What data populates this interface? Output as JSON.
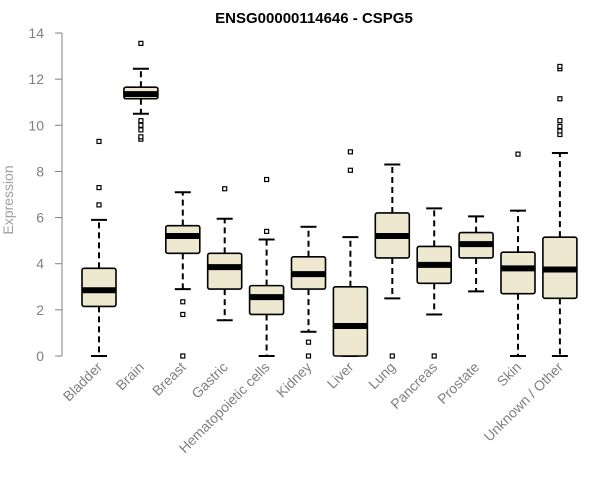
{
  "chart_data": {
    "type": "boxplot",
    "title": "ENSG00000114646 - CSPG5",
    "xlabel": "",
    "ylabel": "Expression",
    "ylim": [
      0,
      14
    ],
    "yticks": [
      0,
      2,
      4,
      6,
      8,
      10,
      12,
      14
    ],
    "grid": false,
    "categories": [
      "Bladder",
      "Brain",
      "Breast",
      "Gastric",
      "Hematopoietic cells",
      "Kidney",
      "Liver",
      "Lung",
      "Pancreas",
      "Prostate",
      "Skin",
      "Unknown / Other"
    ],
    "boxes": [
      {
        "whisker_low": 0.0,
        "q1": 2.15,
        "median": 2.85,
        "q3": 3.8,
        "whisker_high": 5.9,
        "outliers": [
          6.55,
          7.3,
          9.3
        ]
      },
      {
        "whisker_low": 10.5,
        "q1": 11.15,
        "median": 11.35,
        "q3": 11.65,
        "whisker_high": 12.45,
        "outliers": [
          9.4,
          9.5,
          9.8,
          10.0,
          10.2,
          13.55
        ]
      },
      {
        "whisker_low": 2.9,
        "q1": 4.45,
        "median": 5.2,
        "q3": 5.65,
        "whisker_high": 7.1,
        "outliers": [
          0.0,
          1.8,
          2.35
        ]
      },
      {
        "whisker_low": 1.55,
        "q1": 2.9,
        "median": 3.85,
        "q3": 4.45,
        "whisker_high": 5.95,
        "outliers": [
          7.25
        ]
      },
      {
        "whisker_low": 0.0,
        "q1": 1.8,
        "median": 2.55,
        "q3": 3.05,
        "whisker_high": 5.05,
        "outliers": [
          5.4,
          7.65
        ]
      },
      {
        "whisker_low": 1.05,
        "q1": 2.9,
        "median": 3.55,
        "q3": 4.3,
        "whisker_high": 5.6,
        "outliers": [
          0.0,
          0.6
        ]
      },
      {
        "whisker_low": 0.0,
        "q1": 0.0,
        "median": 1.3,
        "q3": 3.0,
        "whisker_high": 5.15,
        "outliers": [
          8.05,
          8.85
        ]
      },
      {
        "whisker_low": 2.5,
        "q1": 4.25,
        "median": 5.2,
        "q3": 6.2,
        "whisker_high": 8.3,
        "outliers": [
          0.0
        ]
      },
      {
        "whisker_low": 1.8,
        "q1": 3.15,
        "median": 3.95,
        "q3": 4.75,
        "whisker_high": 6.4,
        "outliers": [
          0.0
        ]
      },
      {
        "whisker_low": 2.8,
        "q1": 4.25,
        "median": 4.85,
        "q3": 5.35,
        "whisker_high": 6.05,
        "outliers": []
      },
      {
        "whisker_low": 0.0,
        "q1": 2.7,
        "median": 3.8,
        "q3": 4.5,
        "whisker_high": 6.3,
        "outliers": [
          8.75
        ]
      },
      {
        "whisker_low": 0.0,
        "q1": 2.5,
        "median": 3.75,
        "q3": 5.15,
        "whisker_high": 8.8,
        "outliers": [
          9.6,
          9.75,
          9.95,
          10.2,
          11.15,
          12.45,
          12.55
        ]
      }
    ],
    "colors": {
      "box_fill": "#eee8d0",
      "box_stroke": "#000000",
      "median": "#000000",
      "axis_text": "#808080",
      "title": "#000000"
    }
  }
}
